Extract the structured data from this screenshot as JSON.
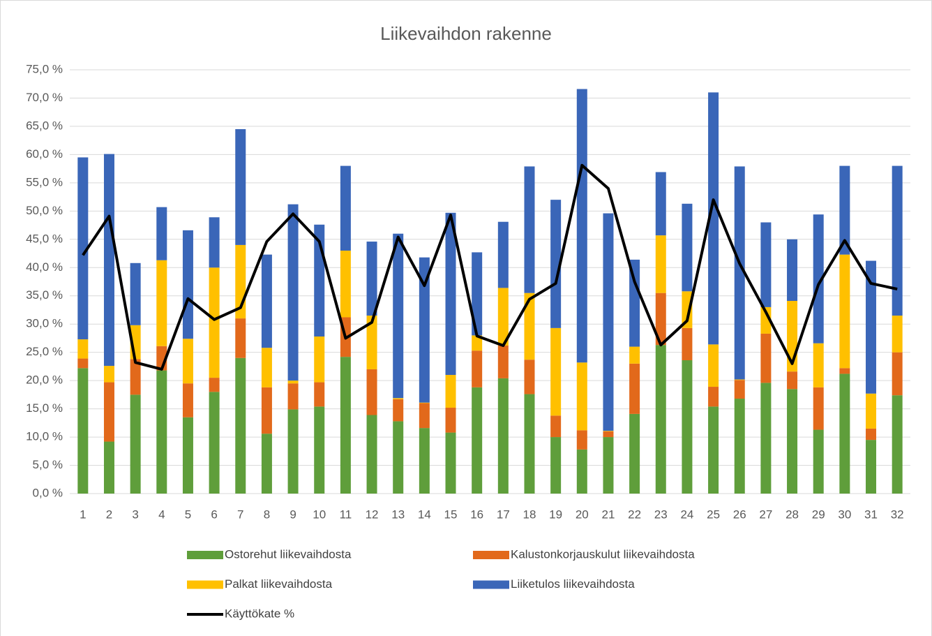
{
  "chart_data": {
    "type": "stacked_bar_line",
    "title": "Liikevaihdon rakenne",
    "categories": [
      "1",
      "2",
      "3",
      "4",
      "5",
      "6",
      "7",
      "8",
      "9",
      "10",
      "11",
      "12",
      "13",
      "14",
      "15",
      "16",
      "17",
      "18",
      "19",
      "20",
      "21",
      "22",
      "23",
      "24",
      "25",
      "26",
      "27",
      "28",
      "29",
      "30",
      "31",
      "32"
    ],
    "series": [
      {
        "name": "Ostorehut liikevaihdosta",
        "color": "#5f9e3b",
        "values": [
          22.2,
          9.2,
          17.5,
          21.8,
          13.5,
          18.0,
          24.0,
          10.6,
          14.9,
          15.4,
          24.2,
          13.9,
          12.8,
          11.6,
          10.8,
          18.8,
          20.4,
          17.6,
          10.0,
          7.8,
          10.0,
          14.1,
          26.3,
          23.6,
          15.4,
          16.8,
          19.6,
          18.5,
          11.3,
          21.2,
          9.5,
          17.4
        ]
      },
      {
        "name": "Kalustonkorjauskulut liikevaihdosta",
        "color": "#e2691b",
        "values": [
          1.7,
          10.5,
          6.3,
          4.3,
          6.0,
          2.5,
          7.0,
          8.2,
          4.6,
          4.3,
          7.0,
          8.1,
          3.9,
          4.4,
          4.4,
          6.5,
          5.8,
          6.1,
          3.8,
          3.4,
          1.0,
          8.9,
          9.2,
          5.7,
          3.5,
          3.3,
          8.7,
          3.1,
          7.5,
          1.0,
          2.0,
          7.6
        ]
      },
      {
        "name": "Palkat liikevaihdosta",
        "color": "#ffc000",
        "values": [
          3.4,
          2.9,
          6.0,
          15.2,
          7.9,
          19.5,
          13.0,
          7.0,
          0.5,
          8.1,
          11.8,
          9.5,
          0.2,
          0.1,
          5.8,
          2.7,
          10.2,
          11.8,
          15.5,
          12.0,
          0.1,
          3.0,
          10.2,
          6.5,
          7.5,
          0.1,
          4.7,
          12.5,
          7.8,
          20.1,
          6.2,
          6.5
        ]
      },
      {
        "name": "Liiketulos liikevaihdosta",
        "color": "#3a66b8",
        "values": [
          32.2,
          37.5,
          11.0,
          9.4,
          19.2,
          8.9,
          20.5,
          16.5,
          31.2,
          19.8,
          15.0,
          13.1,
          29.1,
          25.7,
          28.7,
          14.7,
          11.7,
          22.4,
          22.7,
          48.4,
          38.5,
          15.4,
          11.2,
          15.5,
          44.6,
          37.7,
          15.0,
          10.9,
          22.8,
          15.7,
          23.5,
          26.5
        ]
      },
      {
        "name": "Käyttökate %",
        "color": "#000000",
        "kind": "line",
        "values": [
          42.2,
          49.1,
          23.2,
          22.0,
          34.5,
          30.8,
          32.9,
          44.6,
          49.5,
          44.6,
          27.5,
          30.3,
          45.4,
          36.8,
          49.3,
          27.9,
          26.2,
          34.4,
          37.2,
          58.1,
          54.0,
          37.5,
          26.3,
          30.6,
          52.0,
          40.7,
          32.1,
          23.0,
          37.0,
          44.8,
          37.2,
          36.2
        ]
      }
    ],
    "ylim": [
      0,
      75
    ],
    "yticks": [
      {
        "value": 0,
        "label": "0,0 %"
      },
      {
        "value": 5,
        "label": "5,0 %"
      },
      {
        "value": 10,
        "label": "10,0 %"
      },
      {
        "value": 15,
        "label": "15,0 %"
      },
      {
        "value": 20,
        "label": "20,0 %"
      },
      {
        "value": 25,
        "label": "25,0 %"
      },
      {
        "value": 30,
        "label": "30,0 %"
      },
      {
        "value": 35,
        "label": "35,0 %"
      },
      {
        "value": 40,
        "label": "40,0 %"
      },
      {
        "value": 45,
        "label": "45,0 %"
      },
      {
        "value": 50,
        "label": "50,0 %"
      },
      {
        "value": 55,
        "label": "55,0 %"
      },
      {
        "value": 60,
        "label": "60,0 %"
      },
      {
        "value": 65,
        "label": "65,0 %"
      },
      {
        "value": 70,
        "label": "70,0 %"
      },
      {
        "value": 75,
        "label": "75,0 %"
      }
    ],
    "grid": true
  }
}
